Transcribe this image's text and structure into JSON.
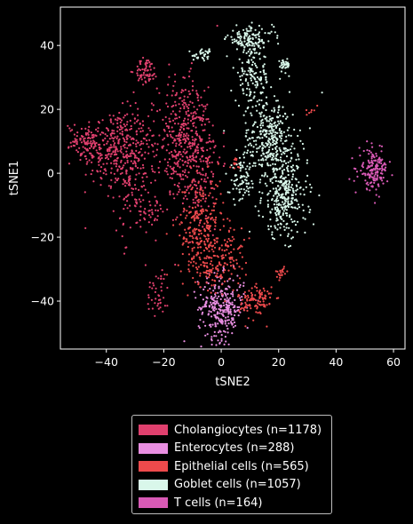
{
  "chart_data": {
    "type": "scatter",
    "title": "",
    "xlabel": "tSNE2",
    "ylabel": "tSNE1",
    "xlim": [
      -56,
      64
    ],
    "ylim": [
      -55,
      52
    ],
    "xticks": [
      -40,
      -20,
      0,
      20,
      40,
      60
    ],
    "yticks": [
      -40,
      -20,
      0,
      20,
      40
    ],
    "xtick_labels": [
      "−40",
      "−20",
      "0",
      "20",
      "40",
      "60"
    ],
    "ytick_labels": [
      "−40",
      "−20",
      "0",
      "20",
      "40"
    ],
    "grid": false,
    "legend_position": "below",
    "series": [
      {
        "name": "Cholangiocytes (n=1178)",
        "color": "#e0406e",
        "count": 1178,
        "clusters": [
          {
            "cx": -38,
            "cy": 8,
            "sx": 6,
            "sy": 6,
            "w": 28
          },
          {
            "cx": -30,
            "cy": 0,
            "sx": 4,
            "sy": 10,
            "w": 18
          },
          {
            "cx": -47,
            "cy": 10,
            "sx": 3,
            "sy": 2,
            "w": 6
          },
          {
            "cx": -14,
            "cy": 10,
            "sx": 4,
            "sy": 10,
            "w": 28
          },
          {
            "cx": -8,
            "cy": 5,
            "sx": 4,
            "sy": 12,
            "w": 20
          },
          {
            "cx": -26,
            "cy": 32,
            "sx": 2,
            "sy": 2,
            "w": 6
          },
          {
            "cx": -22,
            "cy": -37,
            "sx": 2,
            "sy": 4,
            "w": 4
          },
          {
            "cx": -24,
            "cy": -12,
            "sx": 2,
            "sy": 2,
            "w": 2
          }
        ]
      },
      {
        "name": "Enterocytes (n=288)",
        "color": "#e88ee0",
        "count": 288,
        "clusters": [
          {
            "cx": 0,
            "cy": -42,
            "sx": 4,
            "sy": 5,
            "w": 1
          }
        ]
      },
      {
        "name": "Epithelial cells (n=565)",
        "color": "#ee4a4c",
        "count": 565,
        "clusters": [
          {
            "cx": -7,
            "cy": -17,
            "sx": 4,
            "sy": 8,
            "w": 36
          },
          {
            "cx": -4,
            "cy": -28,
            "sx": 3,
            "sy": 4,
            "w": 14
          },
          {
            "cx": 12,
            "cy": -40,
            "sx": 3,
            "sy": 3,
            "w": 16
          },
          {
            "cx": 4,
            "cy": -25,
            "sx": 2,
            "sy": 4,
            "w": 8
          },
          {
            "cx": 21,
            "cy": -31,
            "sx": 1,
            "sy": 1,
            "w": 3
          },
          {
            "cx": 5,
            "cy": 3,
            "sx": 1,
            "sy": 1,
            "w": 2
          },
          {
            "cx": 31,
            "cy": 20,
            "sx": 1,
            "sy": 1,
            "w": 1
          }
        ]
      },
      {
        "name": "Goblet cells (n=1057)",
        "color": "#d9f7ea",
        "count": 1057,
        "clusters": [
          {
            "cx": 17,
            "cy": 10,
            "sx": 5,
            "sy": 7,
            "w": 34
          },
          {
            "cx": 22,
            "cy": -8,
            "sx": 4,
            "sy": 6,
            "w": 26
          },
          {
            "cx": 10,
            "cy": 42,
            "sx": 4,
            "sy": 2,
            "w": 12
          },
          {
            "cx": 11,
            "cy": 30,
            "sx": 3,
            "sy": 4,
            "w": 12
          },
          {
            "cx": 7,
            "cy": -3,
            "sx": 2,
            "sy": 3,
            "w": 6
          },
          {
            "cx": 22,
            "cy": 34,
            "sx": 1,
            "sy": 1,
            "w": 3
          },
          {
            "cx": -6,
            "cy": 37,
            "sx": 2,
            "sy": 1,
            "w": 3
          }
        ]
      },
      {
        "name": "T cells (n=164)",
        "color": "#d95ab6",
        "count": 164,
        "clusters": [
          {
            "cx": 53,
            "cy": 1,
            "sx": 2.5,
            "sy": 3,
            "w": 1
          }
        ]
      }
    ]
  }
}
